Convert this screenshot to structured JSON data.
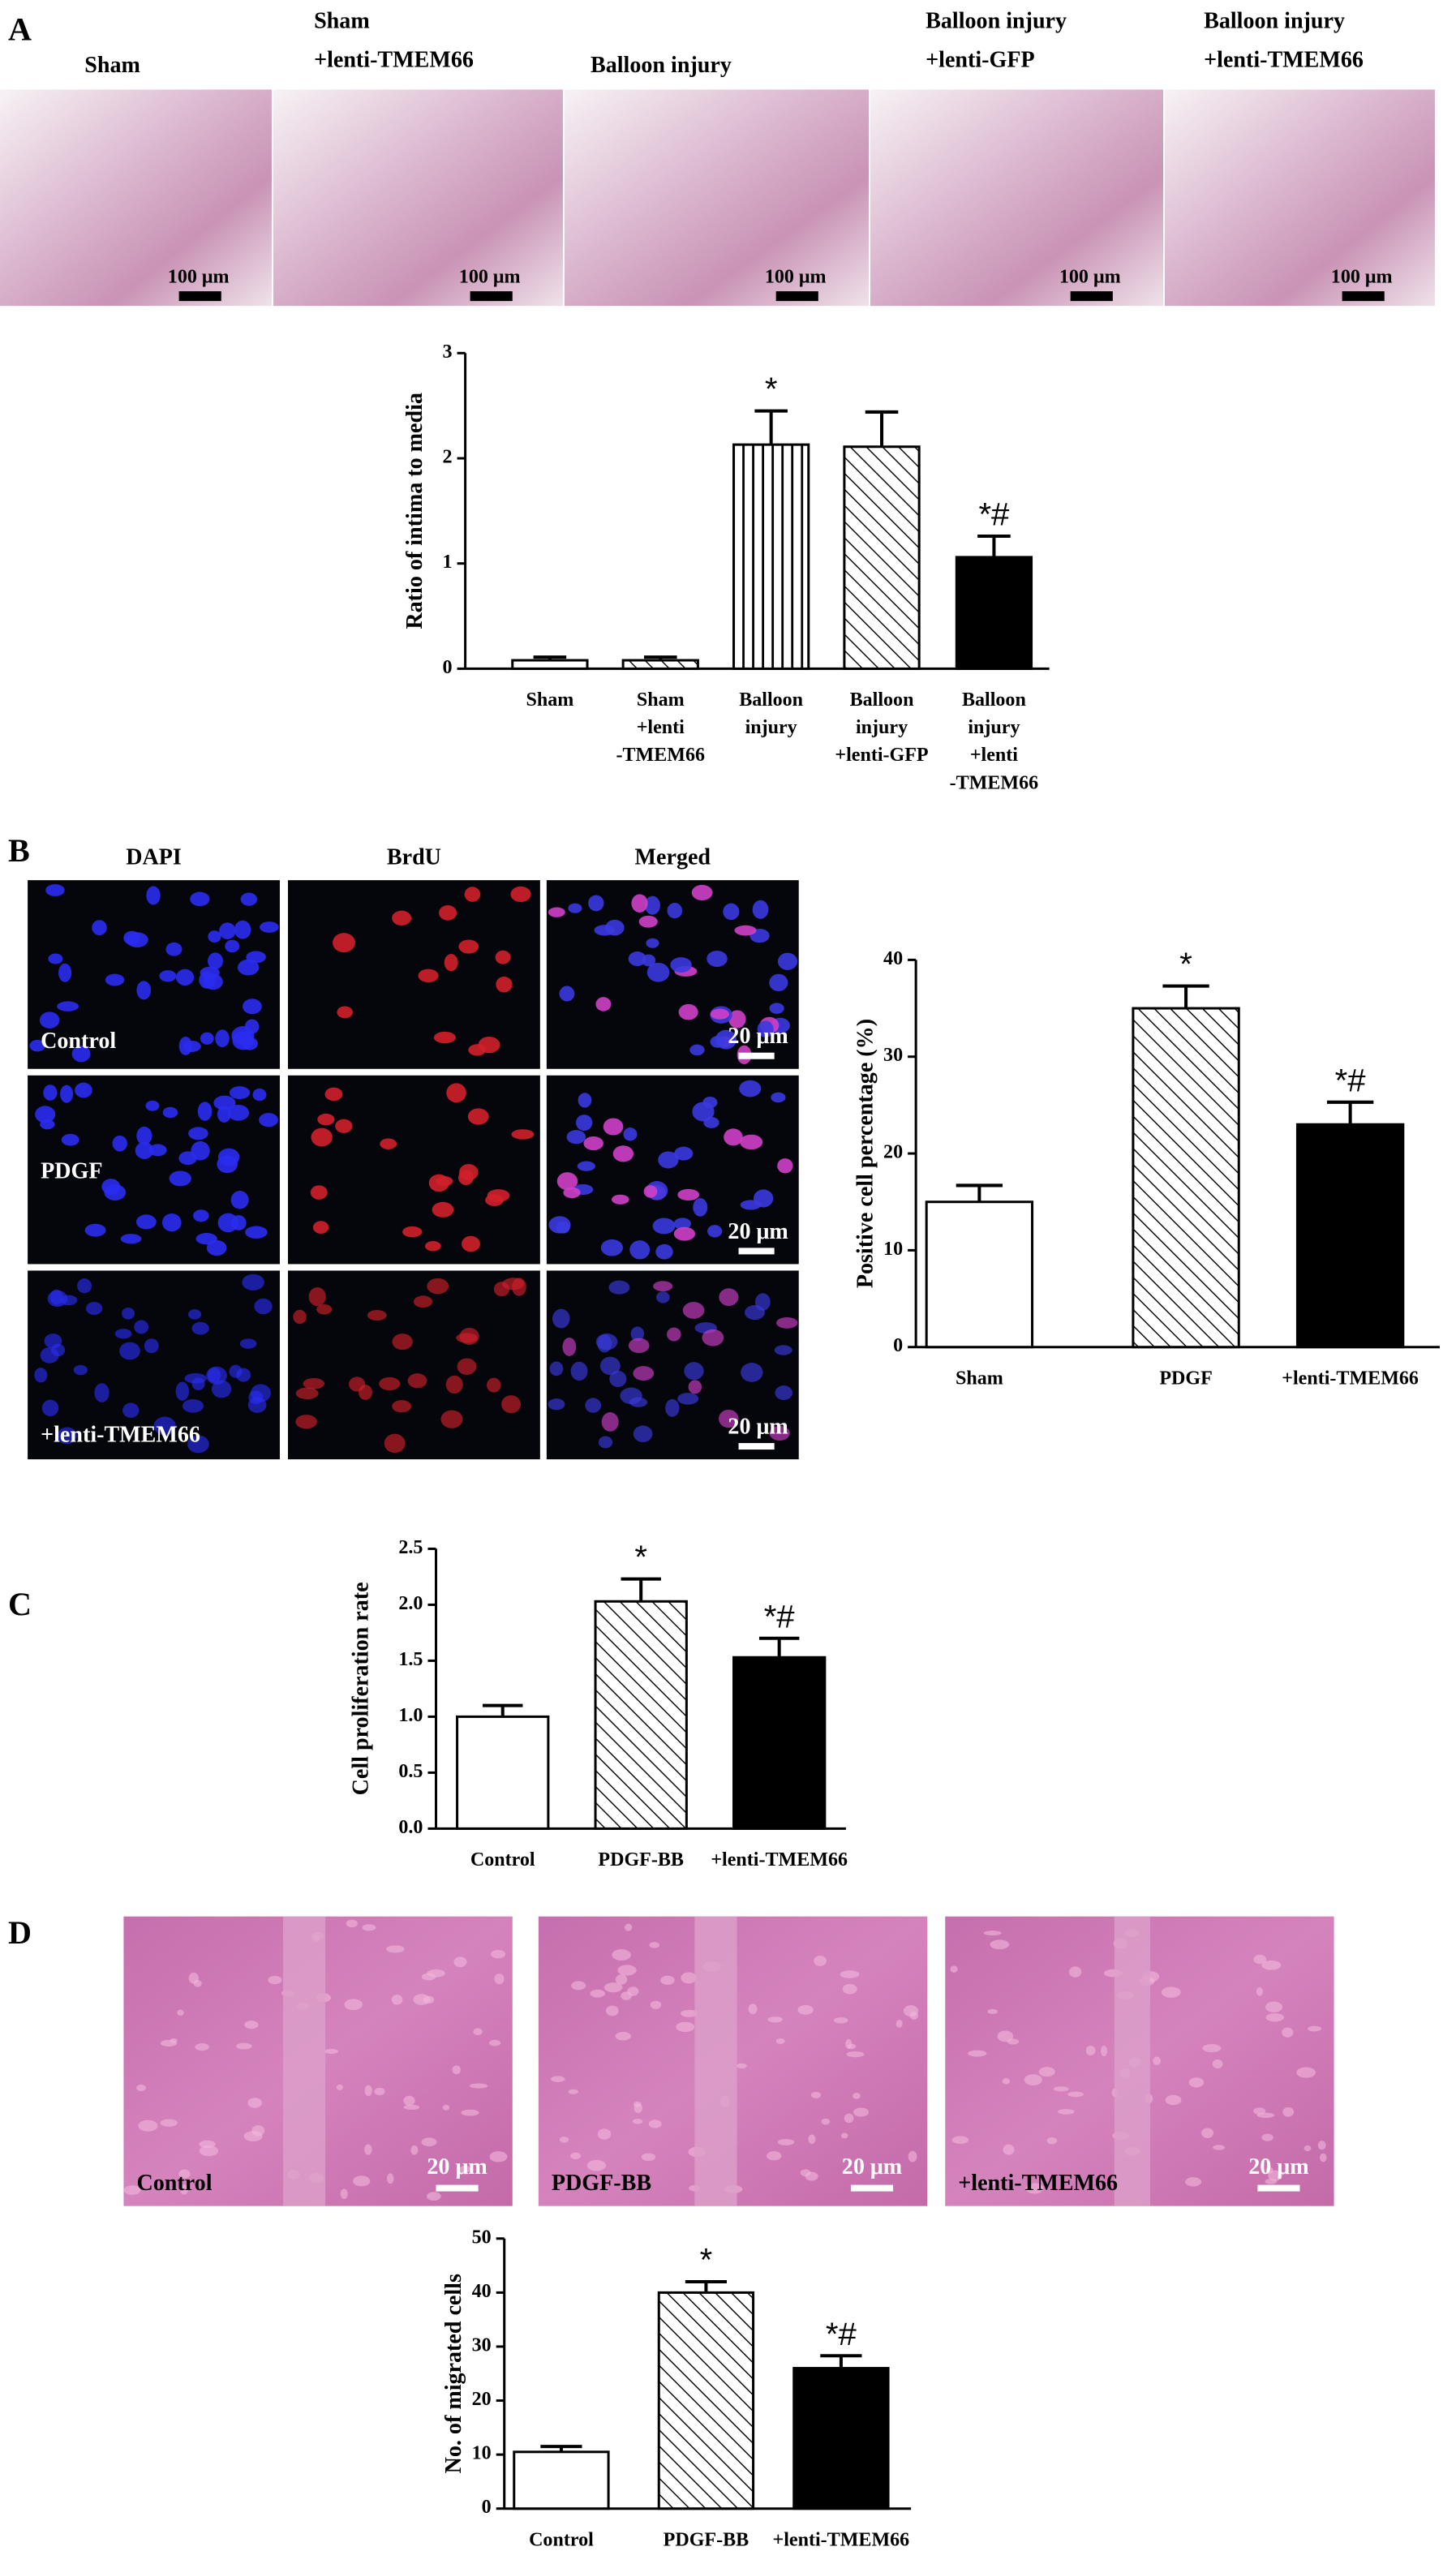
{
  "figure": {
    "panel_labels": [
      "A",
      "B",
      "C",
      "D"
    ],
    "a_images": {
      "labels": [
        [
          "Sham"
        ],
        [
          "Sham",
          "+lenti-TMEM66"
        ],
        [
          "Balloon injury"
        ],
        [
          "Balloon injury",
          "+lenti-GFP"
        ],
        [
          "Balloon injury",
          "+lenti-TMEM66"
        ]
      ],
      "scale_bar": "100 μm"
    },
    "b_images": {
      "columns": [
        "DAPI",
        "BrdU",
        "Merged"
      ],
      "rows": [
        "Control",
        "PDGF",
        "+lenti-TMEM66"
      ],
      "scale_bar": "20 μm"
    },
    "d_images": {
      "labels": [
        "Control",
        "PDGF-BB",
        "+lenti-TMEM66"
      ],
      "scale_bar": "20 μm"
    }
  },
  "chart_data": [
    {
      "type": "bar",
      "ylabel": "Ratio of intima to media",
      "categories": [
        [
          "Sham"
        ],
        [
          "Sham",
          "+lenti",
          "-TMEM66"
        ],
        [
          "Balloon",
          "injury"
        ],
        [
          "Balloon",
          "injury",
          "+lenti-GFP"
        ],
        [
          "Balloon",
          "injury",
          "+lenti",
          "-TMEM66"
        ]
      ],
      "values": [
        0.08,
        0.08,
        2.13,
        2.11,
        1.06
      ],
      "errors": [
        0.03,
        0.03,
        0.32,
        0.33,
        0.2
      ],
      "annotations": [
        null,
        null,
        "*",
        null,
        "*#"
      ],
      "patterns": [
        "open",
        "back-diagonal",
        "vertical",
        "back-diagonal",
        "solid"
      ],
      "color": "#000000",
      "ylim": [
        0,
        3
      ],
      "yticks": [
        0,
        1,
        2,
        3
      ]
    },
    {
      "type": "bar",
      "ylabel": "Positive cell percentage (%)",
      "categories": [
        "Sham",
        "PDGF",
        "+lenti-TMEM66"
      ],
      "values": [
        15,
        35,
        23
      ],
      "errors": [
        1.7,
        2.3,
        2.3
      ],
      "annotations": [
        null,
        "*",
        "*#"
      ],
      "patterns": [
        "open",
        "back-diagonal",
        "solid"
      ],
      "color": "#000000",
      "ylim": [
        0,
        40
      ],
      "yticks": [
        0,
        10,
        20,
        30,
        40
      ]
    },
    {
      "type": "bar",
      "ylabel": "Cell proliferation rate",
      "categories": [
        "Control",
        "PDGF-BB",
        "+lenti-TMEM66"
      ],
      "values": [
        1.0,
        2.03,
        1.53
      ],
      "errors": [
        0.1,
        0.2,
        0.17
      ],
      "annotations": [
        null,
        "*",
        "*#"
      ],
      "patterns": [
        "open",
        "back-diagonal",
        "solid"
      ],
      "color": "#000000",
      "ylim": [
        0,
        2.5
      ],
      "yticks": [
        {
          "value": 0,
          "label": "0.0"
        },
        0.5,
        {
          "value": 1,
          "label": "1.0"
        },
        1.5,
        {
          "value": 2,
          "label": "2.0"
        },
        2.5
      ]
    },
    {
      "type": "bar",
      "ylabel": "No. of migrated cells",
      "categories": [
        "Control",
        "PDGF-BB",
        "+lenti-TMEM66"
      ],
      "values": [
        10.5,
        40,
        26
      ],
      "errors": [
        1,
        2,
        2.3
      ],
      "annotations": [
        null,
        "*",
        "*#"
      ],
      "patterns": [
        "open",
        "back-diagonal",
        "solid"
      ],
      "color": "#000000",
      "ylim": [
        0,
        50
      ],
      "yticks": [
        0,
        10,
        20,
        30,
        40,
        50
      ]
    }
  ]
}
